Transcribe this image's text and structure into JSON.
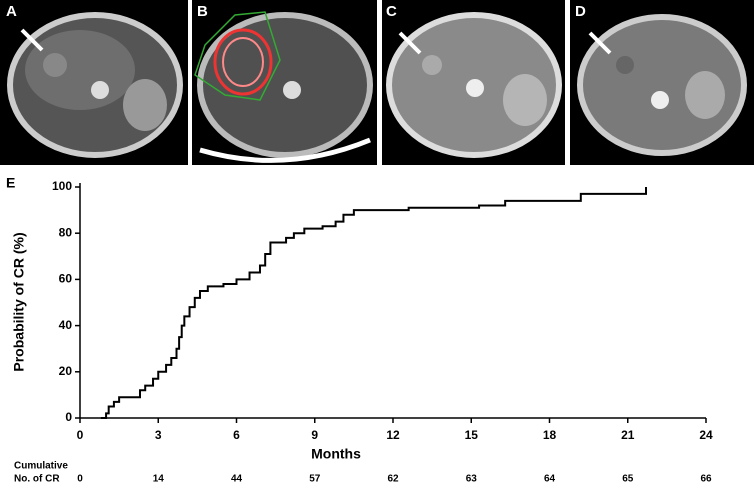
{
  "panels": [
    "A",
    "B",
    "C",
    "D"
  ],
  "chart_data": {
    "type": "line",
    "panel_label": "E",
    "x_label": "Months",
    "y_label": "Probability of CR (%)",
    "x": [
      0.8,
      1.0,
      1.1,
      1.3,
      1.5,
      2.3,
      2.5,
      2.8,
      3.0,
      3.3,
      3.5,
      3.7,
      3.8,
      3.9,
      4.0,
      4.2,
      4.4,
      4.6,
      4.9,
      5.5,
      6.0,
      6.5,
      6.9,
      7.1,
      7.3,
      7.9,
      8.2,
      8.6,
      9.3,
      9.8,
      10.1,
      10.5,
      12.6,
      15.3,
      16.3,
      19.2,
      21.7
    ],
    "series": [
      {
        "name": "CR",
        "color": "#000000",
        "values": [
          0,
          2,
          5,
          7,
          9,
          12,
          14,
          17,
          20,
          23,
          26,
          30,
          35,
          40,
          44,
          48,
          52,
          55,
          57,
          58,
          60,
          63,
          66,
          71,
          76,
          78,
          80,
          82,
          83,
          85,
          88,
          90,
          91,
          92,
          94,
          97,
          100
        ]
      }
    ],
    "xlim": [
      0,
      24
    ],
    "xticks": [
      0,
      3,
      6,
      9,
      12,
      15,
      18,
      21,
      24
    ],
    "ylim": [
      0,
      100
    ],
    "yticks": [
      0,
      20,
      40,
      60,
      80,
      100
    ],
    "risk_label": [
      "Cumulative",
      "No. of CR"
    ],
    "risk_counts": [
      0,
      14,
      44,
      57,
      62,
      63,
      64,
      65,
      66
    ]
  }
}
